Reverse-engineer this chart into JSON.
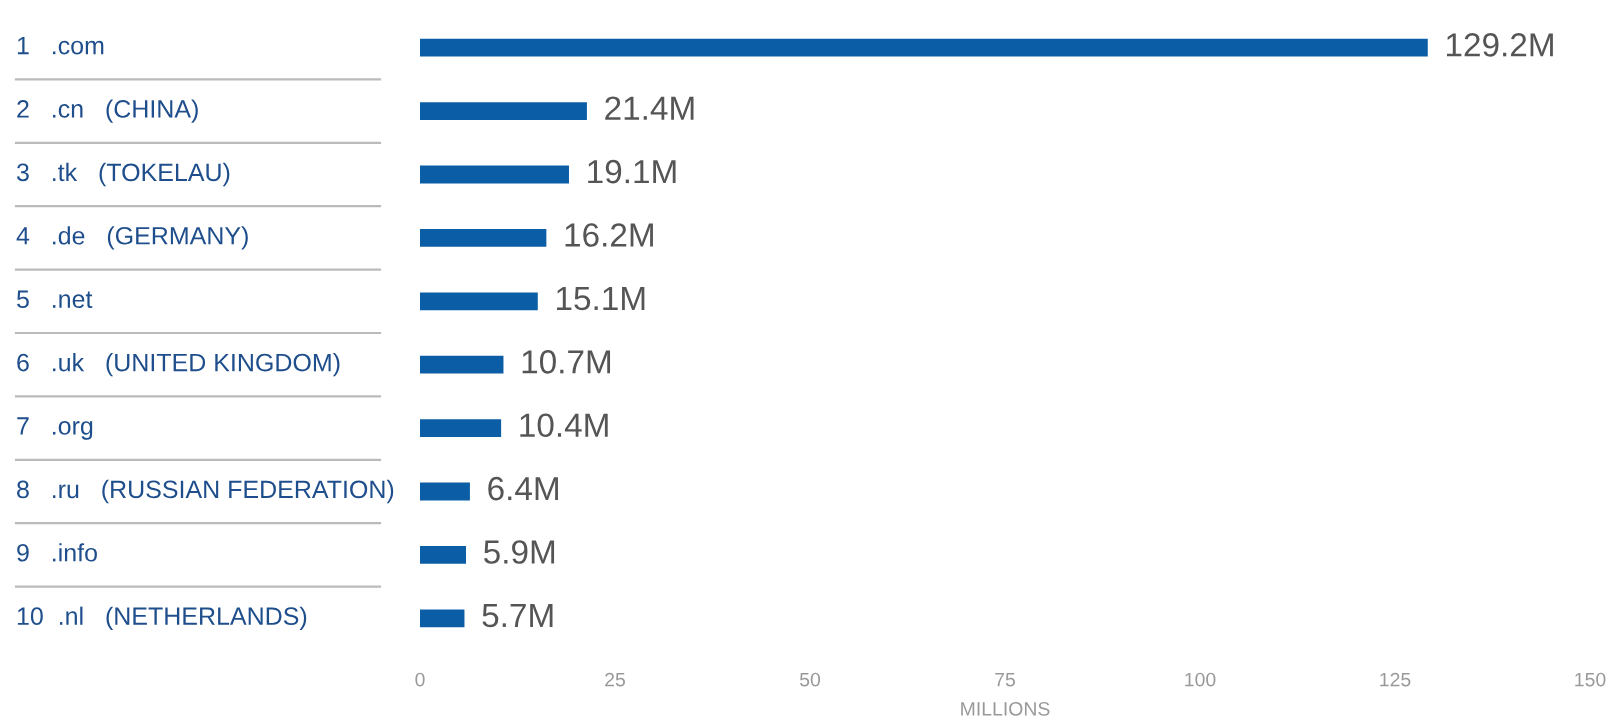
{
  "chart_data": {
    "type": "bar",
    "orientation": "horizontal",
    "categories": [
      "1   .com",
      "2   .cn   (CHINA)",
      "3   .tk   (TOKELAU)",
      "4   .de   (GERMANY)",
      "5   .net",
      "6   .uk   (UNITED KINGDOM)",
      "7   .org",
      "8   .ru   (RUSSIAN FEDERATION)",
      "9   .info",
      "10  .nl   (NETHERLANDS)"
    ],
    "values": [
      129.2,
      21.4,
      19.1,
      16.2,
      15.1,
      10.7,
      10.4,
      6.4,
      5.9,
      5.7
    ],
    "value_labels": [
      "129.2M",
      "21.4M",
      "19.1M",
      "16.2M",
      "15.1M",
      "10.7M",
      "10.4M",
      "6.4M",
      "5.9M",
      "5.7M"
    ],
    "color": "#0b5ea6",
    "xlabel": "MILLIONS",
    "xlim": [
      0,
      150
    ],
    "xticks": [
      0,
      25,
      50,
      75,
      100,
      125,
      150
    ],
    "grid": false,
    "legend": false
  }
}
